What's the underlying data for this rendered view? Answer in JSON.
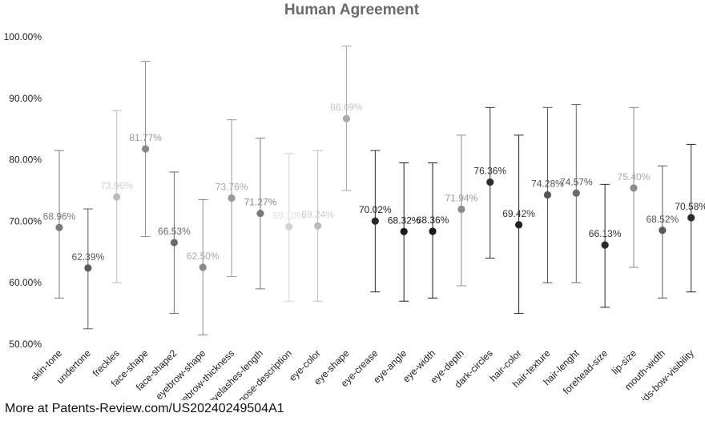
{
  "chart_data": {
    "type": "scatter",
    "title": "Human Agreement",
    "xlabel": "",
    "ylabel": "",
    "ylim": [
      50,
      100
    ],
    "yticks": [
      "50.00%",
      "60.00%",
      "70.00%",
      "80.00%",
      "90.00%",
      "100.00%"
    ],
    "grid": false,
    "categories": [
      "skin-tone",
      "undertone",
      "freckles",
      "face-shape",
      "face-shape2",
      "eyebrow-shape",
      "eyebrow-thickness",
      "eyelashes-length",
      "nose-description",
      "eye-color",
      "eye-shape",
      "eye-crease",
      "eye-angle",
      "eye-width",
      "eye-depth",
      "dark-circles",
      "hair-color",
      "hair-texture",
      "hair-lenght",
      "forehead-size",
      "lip-size",
      "mouth-width",
      "cupids-bow-visibility"
    ],
    "values": [
      68.96,
      62.39,
      73.96,
      81.77,
      66.53,
      62.5,
      73.76,
      71.27,
      69.1,
      69.24,
      86.69,
      70.02,
      68.32,
      68.36,
      71.94,
      76.36,
      69.42,
      74.28,
      74.57,
      66.13,
      75.4,
      68.52,
      70.58
    ],
    "labels": [
      "68.96%",
      "62.39%",
      "73.96%",
      "81.77%",
      "66.53%",
      "62.50%",
      "73.76%",
      "71.27%",
      "69.10%",
      "69.24%",
      "86.69%",
      "70.02%",
      "68.32%",
      "68.36%",
      "71.94%",
      "76.36%",
      "69.42%",
      "74.28%",
      "74.57%",
      "66.13%",
      "75.40%",
      "68.52%",
      "70.58%"
    ],
    "error_low": [
      57.5,
      52.5,
      60,
      67.5,
      55,
      51.5,
      61,
      59,
      57,
      57,
      75,
      58.5,
      57,
      57.5,
      59.5,
      64,
      55,
      60,
      60,
      56,
      62.5,
      57.5,
      58.5
    ],
    "error_high": [
      81.5,
      72,
      88,
      96,
      78,
      73.5,
      86.5,
      83.5,
      81,
      81.5,
      98.5,
      81.5,
      79.5,
      79.5,
      84,
      88.5,
      84,
      88.5,
      89,
      76,
      88.5,
      79,
      82.5
    ],
    "point_colors": [
      "#7a7a7a",
      "#5a5a5a",
      "#bdbdbd",
      "#8a8a8a",
      "#6a6a6a",
      "#8a8a8a",
      "#9a9a9a",
      "#7a7a7a",
      "#d4d4d4",
      "#bcbcbc",
      "#aaaaaa",
      "#2a2a2a",
      "#1a1a1a",
      "#1a1a1a",
      "#8a8a8a",
      "#2e2e2e",
      "#222222",
      "#555555",
      "#6a6a6a",
      "#2a2a2a",
      "#8a8a8a",
      "#5a5a5a",
      "#2a2a2a"
    ],
    "label_colors": [
      "#7a7a7a",
      "#555555",
      "#d0d0d0",
      "#9a9a9a",
      "#6a6a6a",
      "#aaaaaa",
      "#aaaaaa",
      "#888888",
      "#e0e0e0",
      "#cccccc",
      "#c8c8c8",
      "#222222",
      "#222222",
      "#222222",
      "#999999",
      "#333333",
      "#333333",
      "#555555",
      "#555555",
      "#333333",
      "#aaaaaa",
      "#555555",
      "#333333"
    ]
  },
  "footer": {
    "text": "More at Patents-Review.com/US20240249504A1"
  }
}
